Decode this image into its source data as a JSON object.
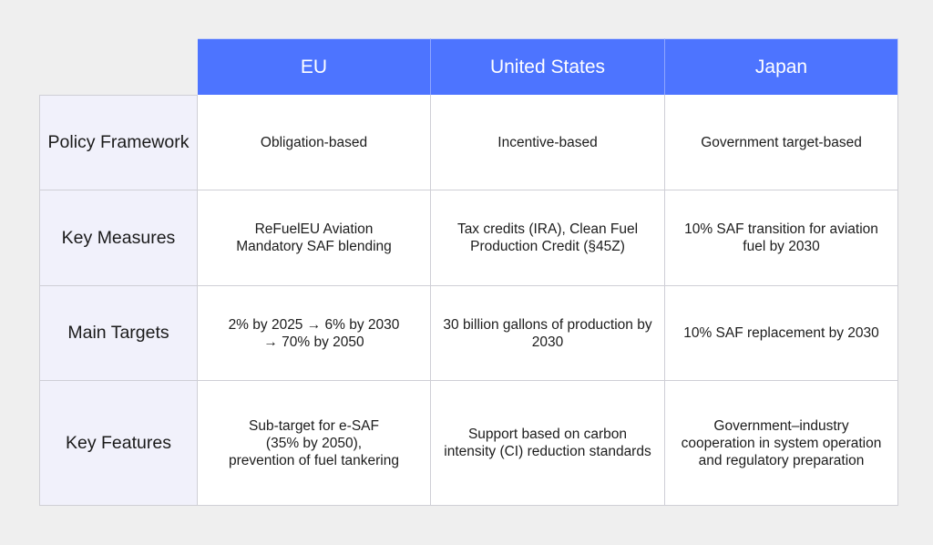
{
  "table": {
    "columns": [
      "EU",
      "United States",
      "Japan"
    ],
    "rows": [
      {
        "label": "Policy Framework",
        "cells": [
          "Obligation-based",
          "Incentive-based",
          "Government target-based"
        ]
      },
      {
        "label": "Key Measures",
        "cells": [
          "ReFuelEU Aviation\nMandatory SAF blending",
          "Tax credits (IRA), Clean Fuel\nProduction Credit (§45Z)",
          "10% SAF transition for aviation\nfuel by 2030"
        ]
      },
      {
        "label": "Main Targets",
        "cells": [
          "2% by 2025 → 6% by 2030\n→ 70% by 2050",
          "30 billion gallons of production by\n2030",
          "10% SAF replacement by 2030"
        ]
      },
      {
        "label": "Key Features",
        "cells": [
          "Sub-target for e-SAF\n(35% by 2050),\nprevention of fuel tankering",
          "Support based on carbon\nintensity (CI) reduction standards",
          "Government–industry\ncooperation in system operation\nand regulatory preparation"
        ]
      }
    ]
  },
  "colors": {
    "header_bg": "#4d74ff",
    "header_text": "#ffffff",
    "row_label_bg": "#f1f1fb",
    "page_bg": "#efefef",
    "grid_line": "#cfcfd6"
  }
}
